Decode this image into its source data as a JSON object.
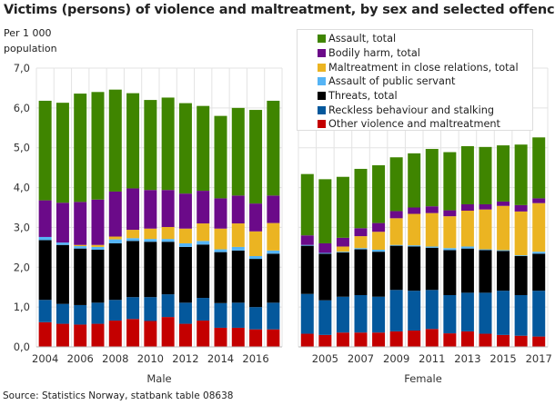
{
  "chart_data": {
    "type": "bar",
    "stacked": true,
    "title": "Victims (persons) of violence and maltreatment, by sex and selected offences",
    "ylabel": "Per 1 000 population",
    "ylim": [
      0,
      7
    ],
    "yticks": [
      "0,0",
      "1,0",
      "2,0",
      "3,0",
      "4,0",
      "5,0",
      "6,0",
      "7,0"
    ],
    "grid": true,
    "legend_position": "top-right",
    "years": [
      "2004",
      "2005",
      "2006",
      "2007",
      "2008",
      "2009",
      "2010",
      "2011",
      "2012",
      "2013",
      "2014",
      "2015",
      "2016",
      "2017"
    ],
    "series_order": [
      "Other violence and maltreatment",
      "Reckless behaviour and stalking",
      "Threats, total",
      "Assault of public servant",
      "Maltreatment in close relations, total",
      "Bodily harm, total",
      "Assault, total"
    ],
    "legend_entries": [
      "Assault, total",
      "Bodily harm, total",
      "Maltreatment in close relations, total",
      "Assault of public servant",
      "Threats, total",
      "Reckless behaviour and stalking",
      "Other violence and maltreatment"
    ],
    "colors": {
      "Assault, total": "#3f8500",
      "Bodily harm, total": "#6b0a89",
      "Maltreatment in close relations, total": "#ebb422",
      "Assault of public servant": "#55b4f5",
      "Threats, total": "#000000",
      "Reckless behaviour and stalking": "#04589c",
      "Other violence and maltreatment": "#c40000"
    },
    "groups": [
      {
        "name": "Male",
        "xticks": [
          "2004",
          "2006",
          "2008",
          "2010",
          "2012",
          "2014",
          "2016"
        ],
        "series": [
          {
            "name": "Other violence and maltreatment",
            "values": [
              0.62,
              0.58,
              0.56,
              0.58,
              0.66,
              0.7,
              0.65,
              0.75,
              0.58,
              0.66,
              0.48,
              0.48,
              0.44,
              0.44
            ]
          },
          {
            "name": "Reckless behaviour and stalking",
            "values": [
              0.56,
              0.5,
              0.49,
              0.53,
              0.52,
              0.55,
              0.6,
              0.57,
              0.53,
              0.57,
              0.62,
              0.63,
              0.56,
              0.67
            ]
          },
          {
            "name": "Threats, total",
            "values": [
              1.5,
              1.48,
              1.42,
              1.33,
              1.42,
              1.41,
              1.39,
              1.32,
              1.4,
              1.34,
              1.28,
              1.31,
              1.21,
              1.23
            ]
          },
          {
            "name": "Assault of public servant",
            "values": [
              0.08,
              0.06,
              0.06,
              0.07,
              0.1,
              0.07,
              0.07,
              0.07,
              0.09,
              0.09,
              0.07,
              0.09,
              0.07,
              0.08
            ]
          },
          {
            "name": "Maltreatment in close relations, total",
            "values": [
              0,
              0,
              0.03,
              0.05,
              0.07,
              0.21,
              0.26,
              0.3,
              0.37,
              0.44,
              0.52,
              0.59,
              0.62,
              0.69
            ]
          },
          {
            "name": "Bodily harm, total",
            "values": [
              0.92,
              1.0,
              1.08,
              1.14,
              1.13,
              1.04,
              0.97,
              0.93,
              0.88,
              0.82,
              0.76,
              0.7,
              0.7,
              0.69
            ]
          },
          {
            "name": "Assault, total",
            "values": [
              2.5,
              2.51,
              2.72,
              2.7,
              2.56,
              2.39,
              2.26,
              2.32,
              2.27,
              2.13,
              2.07,
              2.2,
              2.35,
              2.38
            ]
          }
        ]
      },
      {
        "name": "Female",
        "xticks": [
          "2005",
          "2007",
          "2009",
          "2011",
          "2013",
          "2015",
          "2017"
        ],
        "series": [
          {
            "name": "Other violence and maltreatment",
            "values": [
              0.33,
              0.3,
              0.36,
              0.36,
              0.36,
              0.39,
              0.41,
              0.45,
              0.34,
              0.39,
              0.33,
              0.3,
              0.28,
              0.26
            ]
          },
          {
            "name": "Reckless behaviour and stalking",
            "values": [
              1.0,
              0.87,
              0.9,
              0.94,
              0.9,
              1.04,
              1.0,
              0.98,
              0.96,
              0.97,
              1.03,
              1.11,
              1.02,
              1.15
            ]
          },
          {
            "name": "Threats, total",
            "values": [
              1.21,
              1.17,
              1.11,
              1.15,
              1.13,
              1.11,
              1.11,
              1.06,
              1.13,
              1.11,
              1.07,
              1.0,
              0.98,
              0.93
            ]
          },
          {
            "name": "Assault of public servant",
            "values": [
              0.02,
              0.02,
              0.02,
              0.03,
              0.05,
              0.02,
              0.03,
              0.03,
              0.05,
              0.05,
              0.02,
              0.02,
              0.02,
              0.05
            ]
          },
          {
            "name": "Maltreatment in close relations, total",
            "values": [
              0,
              0,
              0.13,
              0.3,
              0.45,
              0.67,
              0.79,
              0.84,
              0.8,
              0.9,
              1.0,
              1.11,
              1.1,
              1.22
            ]
          },
          {
            "name": "Bodily harm, total",
            "values": [
              0.24,
              0.24,
              0.22,
              0.2,
              0.22,
              0.18,
              0.16,
              0.17,
              0.15,
              0.16,
              0.13,
              0.11,
              0.16,
              0.12
            ]
          },
          {
            "name": "Assault, total",
            "values": [
              1.54,
              1.61,
              1.53,
              1.49,
              1.45,
              1.35,
              1.36,
              1.44,
              1.46,
              1.46,
              1.44,
              1.41,
              1.52,
              1.53
            ]
          }
        ]
      }
    ]
  },
  "source": "Source: Statistics Norway, statbank table 08638"
}
